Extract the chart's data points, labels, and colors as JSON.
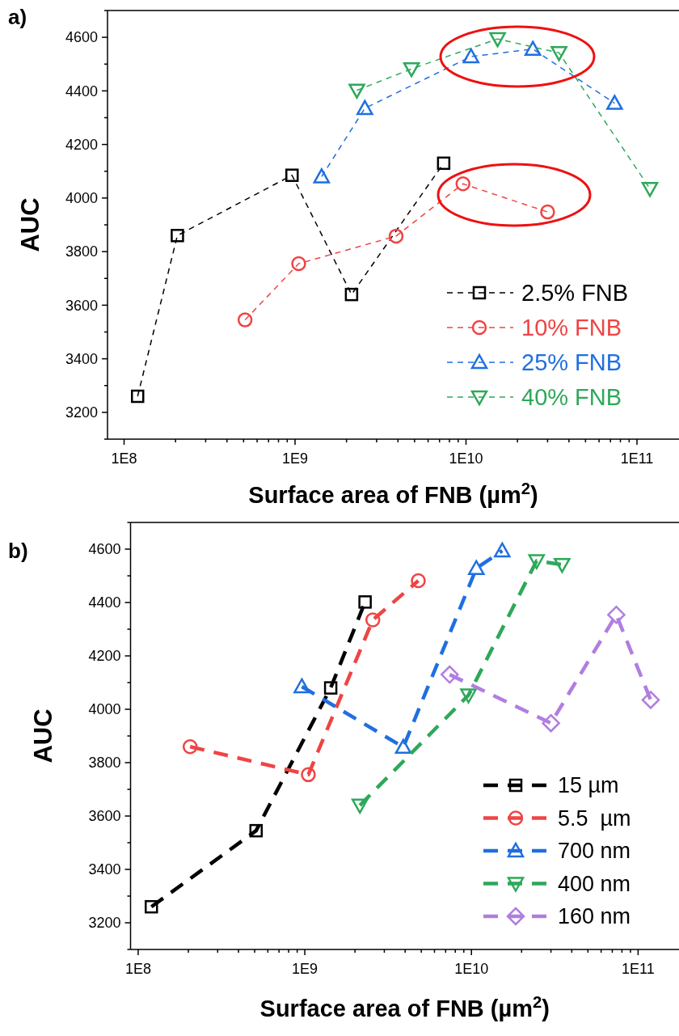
{
  "chart_data": [
    {
      "type": "line",
      "title": "a)",
      "xlabel": "Surface area of FNB (µm$^{2}$)",
      "ylabel": "AUC",
      "log": "x",
      "xlim": [
        80000000.0,
        180000000000.0
      ],
      "ylim": [
        3100,
        4700
      ],
      "xticks": [
        {
          "value": 100000000.0,
          "label": "1E8"
        },
        {
          "value": 200000000.0,
          "label": null
        },
        {
          "value": 300000000.0,
          "label": null
        },
        {
          "value": 400000000.0,
          "label": null
        },
        {
          "value": 500000000.0,
          "label": null
        },
        {
          "value": 600000000.0,
          "label": null
        },
        {
          "value": 700000000.0,
          "label": null
        },
        {
          "value": 800000000.0,
          "label": null
        },
        {
          "value": 900000000.0,
          "label": null
        },
        {
          "value": 1000000000.0,
          "label": "1E9"
        },
        {
          "value": 2000000000.0,
          "label": null
        },
        {
          "value": 3000000000.0,
          "label": null
        },
        {
          "value": 4000000000.0,
          "label": null
        },
        {
          "value": 5000000000.0,
          "label": null
        },
        {
          "value": 6000000000.0,
          "label": null
        },
        {
          "value": 7000000000.0,
          "label": null
        },
        {
          "value": 8000000000.0,
          "label": null
        },
        {
          "value": 9000000000.0,
          "label": null
        },
        {
          "value": 10000000000.0,
          "label": "1E10"
        },
        {
          "value": 20000000000.0,
          "label": null
        },
        {
          "value": 30000000000.0,
          "label": null
        },
        {
          "value": 40000000000.0,
          "label": null
        },
        {
          "value": 50000000000.0,
          "label": null
        },
        {
          "value": 60000000000.0,
          "label": null
        },
        {
          "value": 70000000000.0,
          "label": null
        },
        {
          "value": 80000000000.0,
          "label": null
        },
        {
          "value": 90000000000.0,
          "label": null
        },
        {
          "value": 100000000000.0,
          "label": "1E11"
        }
      ],
      "yticks": [
        {
          "value": 3100,
          "label": null
        },
        3200,
        {
          "value": 3300,
          "label": null
        },
        3400,
        {
          "value": 3500,
          "label": null
        },
        3600,
        {
          "value": 3700,
          "label": null
        },
        3800,
        {
          "value": 3900,
          "label": null
        },
        4000,
        {
          "value": 4100,
          "label": null
        },
        4200,
        {
          "value": 4300,
          "label": null
        },
        4400,
        {
          "value": 4500,
          "label": null
        },
        4600,
        {
          "value": 4700,
          "label": null
        }
      ],
      "legend": "bottom right",
      "line_style": "dashed",
      "grid": false,
      "series": [
        {
          "name": "2.5% FNB",
          "color": "#000000",
          "marker": "square",
          "x": [
            120000000.0,
            205000000.0,
            960000000.0,
            2140000000.0,
            7400000000.0
          ],
          "values": [
            3260,
            3860,
            4085,
            3640,
            4130
          ]
        },
        {
          "name": "10% FNB",
          "color": "#ef4444",
          "marker": "circle",
          "x": [
            510000000.0,
            1050000000.0,
            3900000000.0,
            9600000000.0,
            30000000000.0
          ],
          "values": [
            3545,
            3755,
            3858,
            4053,
            3948
          ]
        },
        {
          "name": "25% FNB",
          "color": "#1f6fe0",
          "marker": "triangle",
          "x": [
            1430000000.0,
            2560000000.0,
            10700000000.0,
            24600000000.0,
            74000000000.0
          ],
          "values": [
            4080,
            4335,
            4528,
            4556,
            4354
          ]
        },
        {
          "name": "40% FNB",
          "color": "#2ea85a",
          "marker": "triangle-down",
          "x": [
            2300000000.0,
            4800000000.0,
            15300000000.0,
            35000000000.0,
            119000000000.0
          ],
          "values": [
            4402,
            4482,
            4594,
            4542,
            4035
          ]
        }
      ]
    },
    {
      "type": "line",
      "title": "b)",
      "xlabel": "Surface area of FNB (µm$^{2}$)",
      "ylabel": "AUC",
      "log": "x",
      "xlim": [
        90000000.0,
        180000000000.0
      ],
      "ylim": [
        3100,
        4700
      ],
      "xticks": [
        {
          "value": 100000000.0,
          "label": "1E8"
        },
        {
          "value": 200000000.0,
          "label": null
        },
        {
          "value": 300000000.0,
          "label": null
        },
        {
          "value": 400000000.0,
          "label": null
        },
        {
          "value": 500000000.0,
          "label": null
        },
        {
          "value": 600000000.0,
          "label": null
        },
        {
          "value": 700000000.0,
          "label": null
        },
        {
          "value": 800000000.0,
          "label": null
        },
        {
          "value": 900000000.0,
          "label": null
        },
        {
          "value": 1000000000.0,
          "label": "1E9"
        },
        {
          "value": 2000000000.0,
          "label": null
        },
        {
          "value": 3000000000.0,
          "label": null
        },
        {
          "value": 4000000000.0,
          "label": null
        },
        {
          "value": 5000000000.0,
          "label": null
        },
        {
          "value": 6000000000.0,
          "label": null
        },
        {
          "value": 7000000000.0,
          "label": null
        },
        {
          "value": 8000000000.0,
          "label": null
        },
        {
          "value": 9000000000.0,
          "label": null
        },
        {
          "value": 10000000000.0,
          "label": "1E10"
        },
        {
          "value": 20000000000.0,
          "label": null
        },
        {
          "value": 30000000000.0,
          "label": null
        },
        {
          "value": 40000000000.0,
          "label": null
        },
        {
          "value": 50000000000.0,
          "label": null
        },
        {
          "value": 60000000000.0,
          "label": null
        },
        {
          "value": 70000000000.0,
          "label": null
        },
        {
          "value": 80000000000.0,
          "label": null
        },
        {
          "value": 90000000000.0,
          "label": null
        },
        {
          "value": 100000000000.0,
          "label": "1E11"
        }
      ],
      "yticks": [
        {
          "value": 3100,
          "label": null
        },
        3200,
        {
          "value": 3300,
          "label": null
        },
        3400,
        {
          "value": 3500,
          "label": null
        },
        3600,
        {
          "value": 3700,
          "label": null
        },
        3800,
        {
          "value": 3900,
          "label": null
        },
        4000,
        {
          "value": 4100,
          "label": null
        },
        4200,
        {
          "value": 4300,
          "label": null
        },
        4400,
        {
          "value": 4500,
          "label": null
        },
        4600,
        {
          "value": 4700,
          "label": null
        }
      ],
      "legend": "bottom right",
      "line_style": "dashed",
      "grid": false,
      "series": [
        {
          "name": "15 µm",
          "color": "#000000",
          "marker": "square",
          "x": [
            120000000.0,
            510000000.0,
            1430000000.0,
            2300000000.0
          ],
          "values": [
            3260,
            3545,
            4080,
            4402
          ]
        },
        {
          "name": "5.5  µm",
          "color": "#ef4444",
          "marker": "circle",
          "x": [
            205000000.0,
            1050000000.0,
            2560000000.0,
            4800000000.0
          ],
          "values": [
            3860,
            3755,
            4335,
            4482
          ]
        },
        {
          "name": "700 nm",
          "color": "#1f6fe0",
          "marker": "triangle",
          "x": [
            960000000.0,
            3900000000.0,
            10700000000.0,
            15300000000.0
          ],
          "values": [
            4085,
            3858,
            4528,
            4594
          ]
        },
        {
          "name": "400 nm",
          "color": "#2ea85a",
          "marker": "triangle-down",
          "x": [
            2140000000.0,
            9600000000.0,
            24600000000.0,
            35000000000.0
          ],
          "values": [
            3640,
            4053,
            4556,
            4542
          ]
        },
        {
          "name": "160 nm",
          "color": "#b07ee0",
          "marker": "diamond",
          "x": [
            7400000000.0,
            30000000000.0,
            74000000000.0,
            119000000000.0
          ],
          "values": [
            4130,
            3948,
            4354,
            4035
          ]
        }
      ]
    }
  ]
}
